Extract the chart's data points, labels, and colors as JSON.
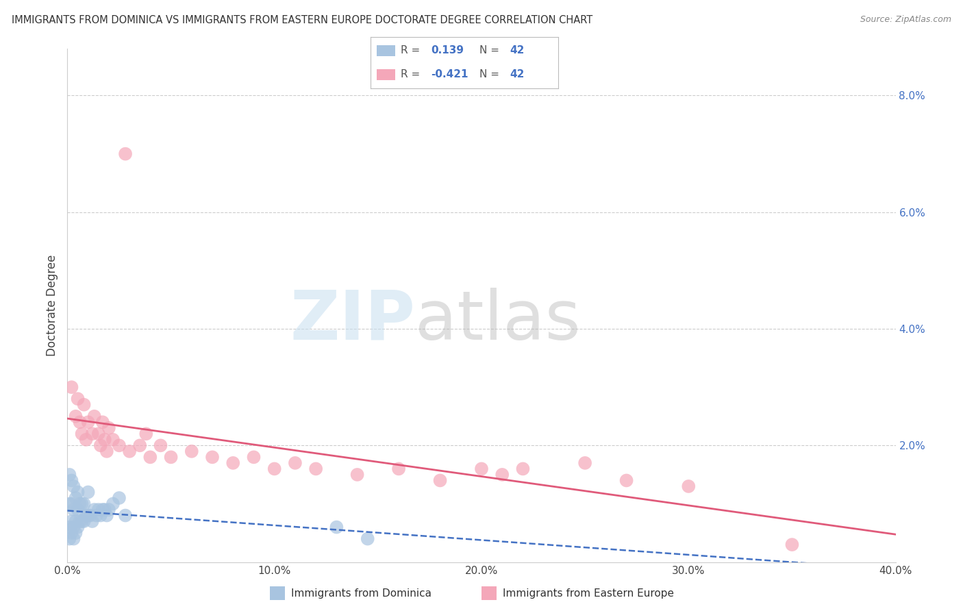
{
  "title": "IMMIGRANTS FROM DOMINICA VS IMMIGRANTS FROM EASTERN EUROPE DOCTORATE DEGREE CORRELATION CHART",
  "source": "Source: ZipAtlas.com",
  "ylabel": "Doctorate Degree",
  "xlabel_blue": "Immigrants from Dominica",
  "xlabel_pink": "Immigrants from Eastern Europe",
  "R_blue": 0.139,
  "N_blue": 42,
  "R_pink": -0.421,
  "N_pink": 42,
  "xlim": [
    0.0,
    0.4
  ],
  "ylim": [
    0.0,
    0.088
  ],
  "yticks": [
    0.0,
    0.02,
    0.04,
    0.06,
    0.08
  ],
  "ytick_labels": [
    "",
    "2.0%",
    "4.0%",
    "6.0%",
    "8.0%"
  ],
  "xticks": [
    0.0,
    0.1,
    0.2,
    0.3,
    0.4
  ],
  "xtick_labels": [
    "0.0%",
    "10.0%",
    "20.0%",
    "30.0%",
    "40.0%"
  ],
  "blue_color": "#a8c4e0",
  "pink_color": "#f4a7b9",
  "line_blue_color": "#4472c4",
  "line_pink_color": "#e05a7a",
  "blue_scatter_x": [
    0.001,
    0.001,
    0.001,
    0.002,
    0.002,
    0.002,
    0.003,
    0.003,
    0.003,
    0.004,
    0.004,
    0.005,
    0.005,
    0.005,
    0.006,
    0.006,
    0.007,
    0.007,
    0.008,
    0.008,
    0.009,
    0.01,
    0.01,
    0.011,
    0.012,
    0.013,
    0.014,
    0.015,
    0.016,
    0.017,
    0.018,
    0.019,
    0.02,
    0.022,
    0.025,
    0.028,
    0.001,
    0.002,
    0.003,
    0.004,
    0.13,
    0.145
  ],
  "blue_scatter_y": [
    0.006,
    0.01,
    0.015,
    0.007,
    0.01,
    0.014,
    0.006,
    0.009,
    0.013,
    0.007,
    0.011,
    0.006,
    0.009,
    0.012,
    0.007,
    0.01,
    0.007,
    0.01,
    0.007,
    0.01,
    0.008,
    0.008,
    0.012,
    0.008,
    0.007,
    0.009,
    0.008,
    0.009,
    0.008,
    0.009,
    0.009,
    0.008,
    0.009,
    0.01,
    0.011,
    0.008,
    0.004,
    0.005,
    0.004,
    0.005,
    0.006,
    0.004
  ],
  "pink_scatter_x": [
    0.002,
    0.004,
    0.005,
    0.006,
    0.007,
    0.008,
    0.009,
    0.01,
    0.012,
    0.013,
    0.015,
    0.016,
    0.017,
    0.018,
    0.019,
    0.02,
    0.022,
    0.025,
    0.028,
    0.03,
    0.035,
    0.038,
    0.04,
    0.045,
    0.05,
    0.06,
    0.07,
    0.08,
    0.09,
    0.1,
    0.11,
    0.12,
    0.14,
    0.16,
    0.18,
    0.2,
    0.21,
    0.22,
    0.25,
    0.27,
    0.3,
    0.35
  ],
  "pink_scatter_y": [
    0.03,
    0.025,
    0.028,
    0.024,
    0.022,
    0.027,
    0.021,
    0.024,
    0.022,
    0.025,
    0.022,
    0.02,
    0.024,
    0.021,
    0.019,
    0.023,
    0.021,
    0.02,
    0.07,
    0.019,
    0.02,
    0.022,
    0.018,
    0.02,
    0.018,
    0.019,
    0.018,
    0.017,
    0.018,
    0.016,
    0.017,
    0.016,
    0.015,
    0.016,
    0.014,
    0.016,
    0.015,
    0.016,
    0.017,
    0.014,
    0.013,
    0.003
  ]
}
